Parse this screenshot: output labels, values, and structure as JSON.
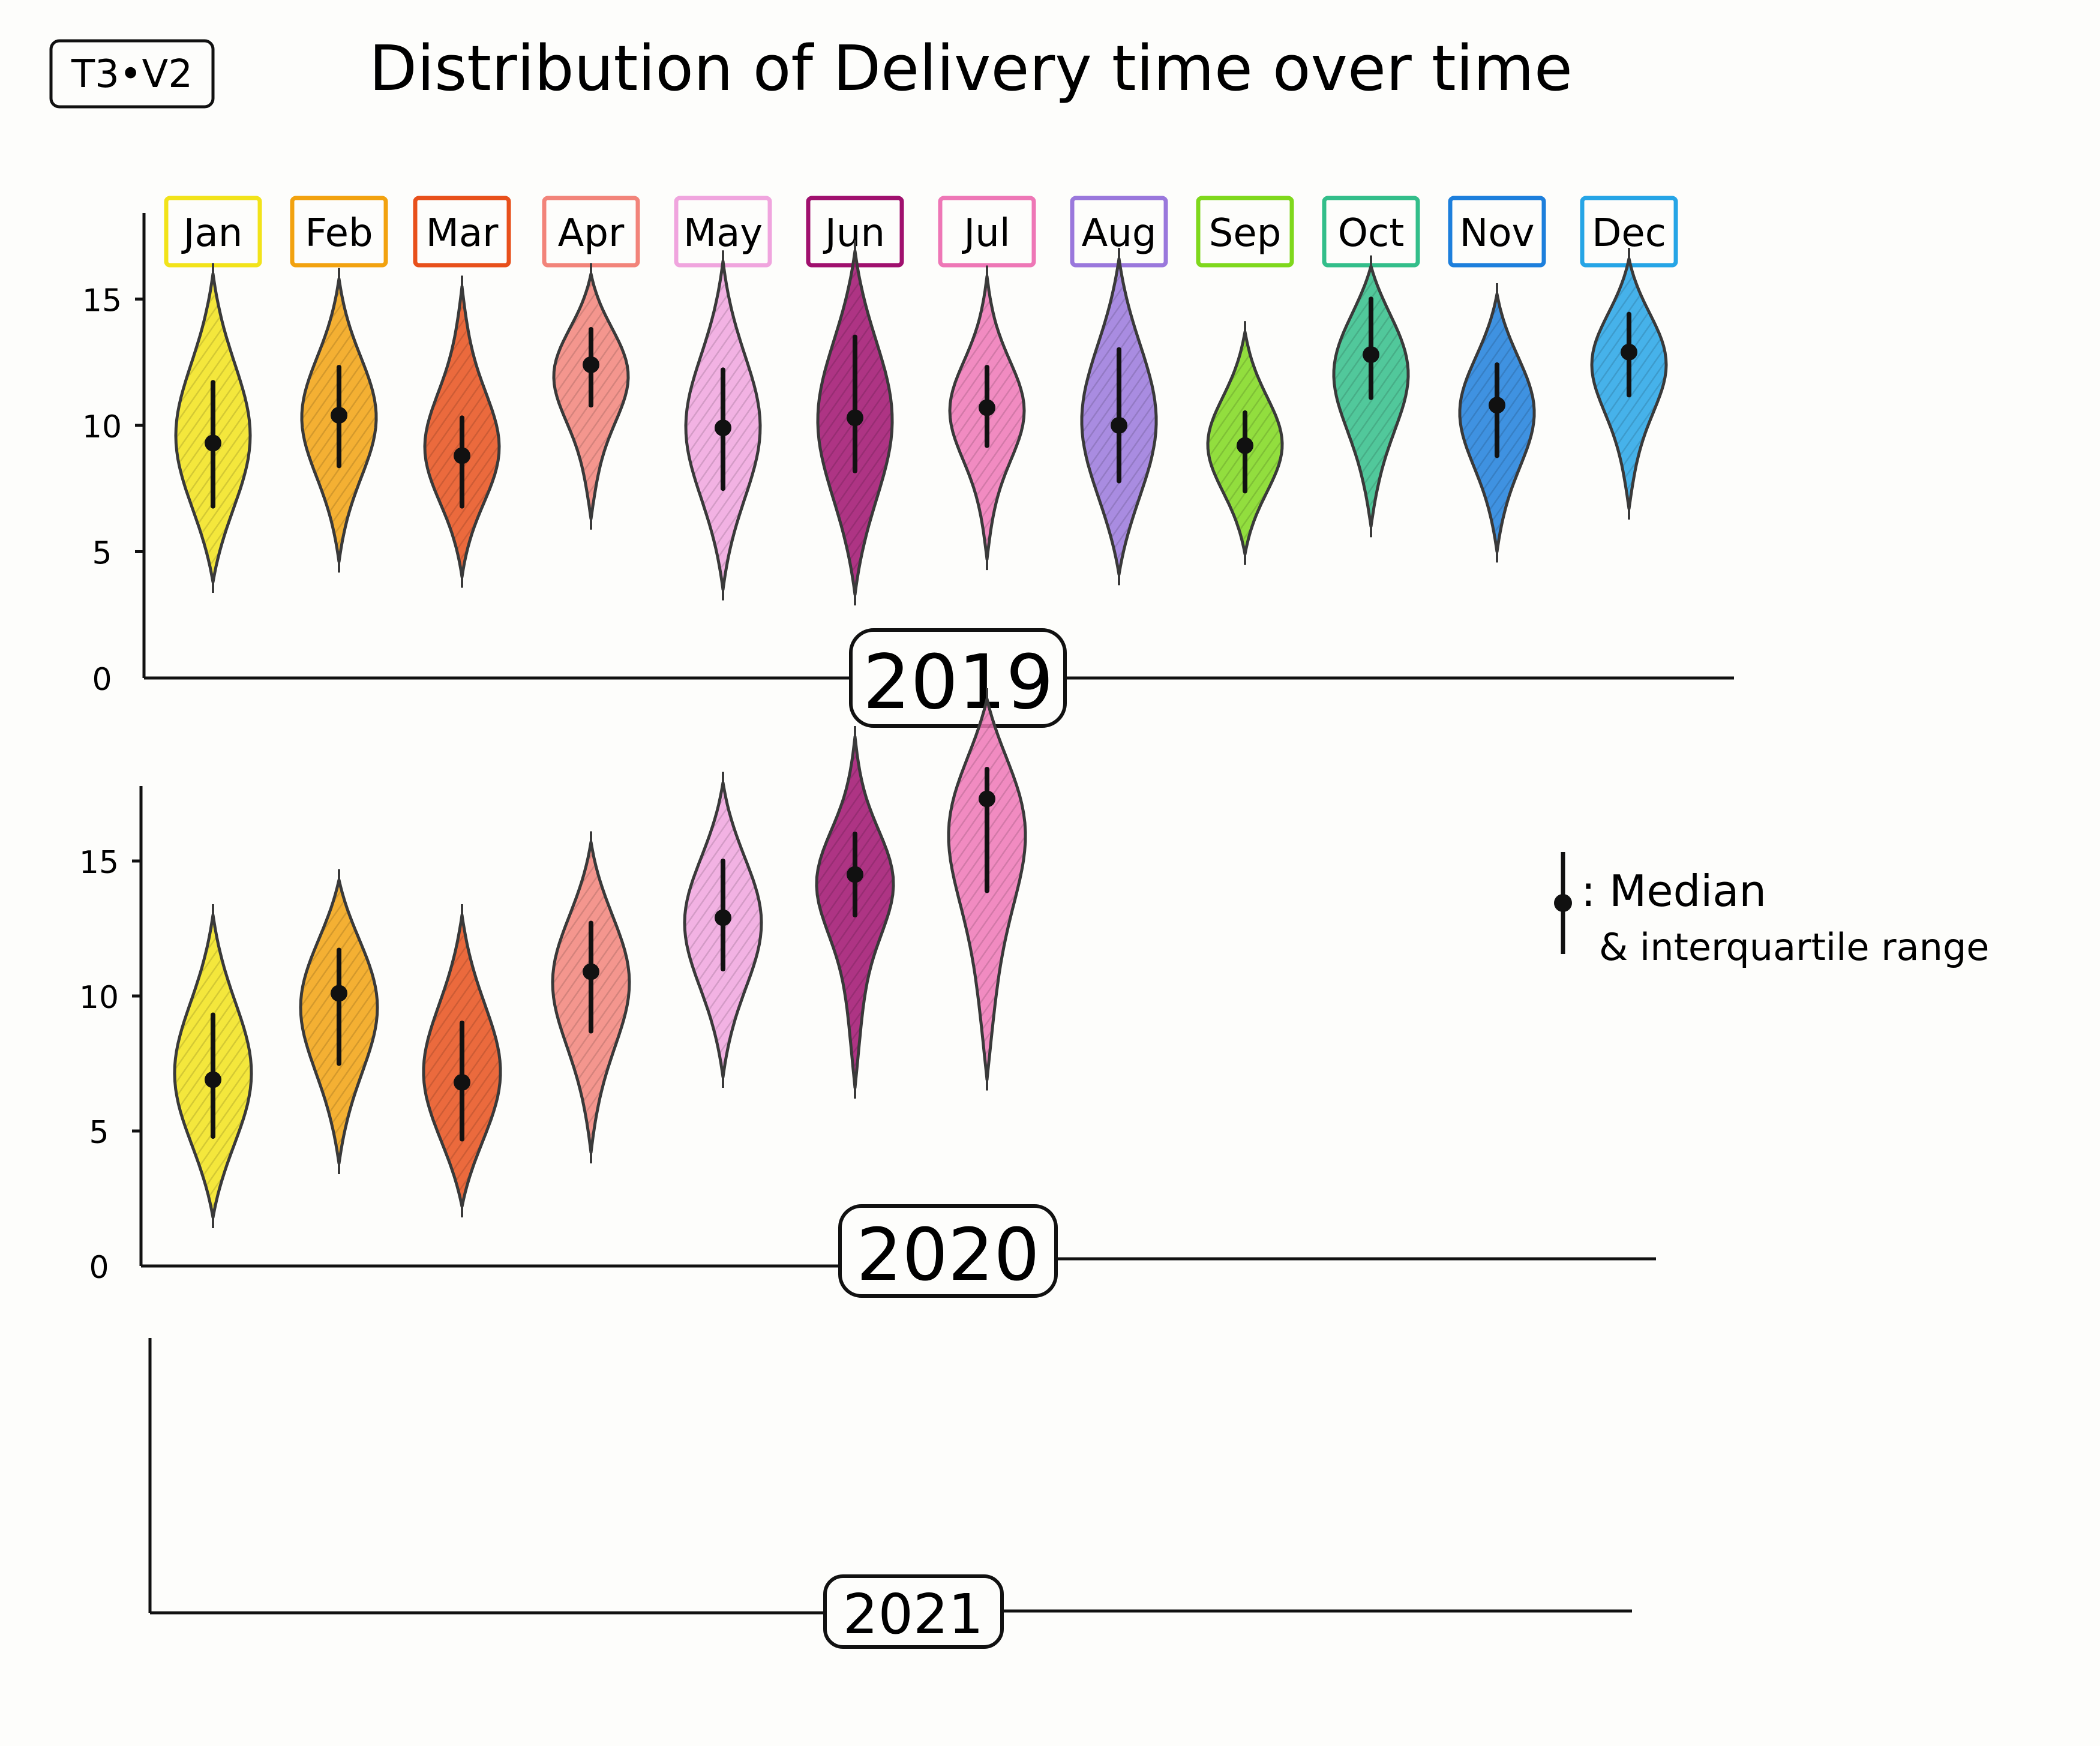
{
  "sheet_id": "T3•V2",
  "title": "Distribution of Delivery time over time",
  "legend": {
    "line1": ": Median",
    "line2": "& interquartile range"
  },
  "months": [
    {
      "label": "Jan",
      "color": "#f2e31a"
    },
    {
      "label": "Feb",
      "color": "#f2a20f"
    },
    {
      "label": "Mar",
      "color": "#e8501b"
    },
    {
      "label": "Apr",
      "color": "#f2847a"
    },
    {
      "label": "May",
      "color": "#f0a5de"
    },
    {
      "label": "Jun",
      "color": "#a0106e"
    },
    {
      "label": "Jul",
      "color": "#ee77b6"
    },
    {
      "label": "Aug",
      "color": "#9a78dc"
    },
    {
      "label": "Sep",
      "color": "#7fd81c"
    },
    {
      "label": "Oct",
      "color": "#33be8a"
    },
    {
      "label": "Nov",
      "color": "#1d7fdc"
    },
    {
      "label": "Dec",
      "color": "#26a5e6"
    }
  ],
  "chart_data": [
    {
      "type": "violin",
      "panel_label": "2019",
      "y_ticks": [
        "0",
        "5",
        "10",
        "15"
      ],
      "ylim": [
        0,
        19
      ],
      "series": [
        {
          "month": "Jan",
          "min": 3.8,
          "q1": 6.8,
          "median": 9.3,
          "q3": 11.7,
          "max": 16.0
        },
        {
          "month": "Feb",
          "min": 4.6,
          "q1": 8.4,
          "median": 10.4,
          "q3": 12.3,
          "max": 15.8
        },
        {
          "month": "Mar",
          "min": 4.0,
          "q1": 6.8,
          "median": 8.8,
          "q3": 10.3,
          "max": 15.5
        },
        {
          "month": "Apr",
          "min": 6.3,
          "q1": 10.8,
          "median": 12.4,
          "q3": 13.8,
          "max": 16.0
        },
        {
          "month": "May",
          "min": 3.5,
          "q1": 7.5,
          "median": 9.9,
          "q3": 12.2,
          "max": 16.5
        },
        {
          "month": "Jun",
          "min": 3.3,
          "q1": 8.2,
          "median": 10.3,
          "q3": 13.5,
          "max": 16.9
        },
        {
          "month": "Jul",
          "min": 4.7,
          "q1": 9.2,
          "median": 10.7,
          "q3": 12.3,
          "max": 15.9
        },
        {
          "month": "Aug",
          "min": 4.1,
          "q1": 7.8,
          "median": 10.0,
          "q3": 13.0,
          "max": 16.6
        },
        {
          "month": "Sep",
          "min": 4.9,
          "q1": 7.4,
          "median": 9.2,
          "q3": 10.5,
          "max": 13.7
        },
        {
          "month": "Oct",
          "min": 6.0,
          "q1": 11.1,
          "median": 12.8,
          "q3": 15.0,
          "max": 16.3
        },
        {
          "month": "Nov",
          "min": 5.0,
          "q1": 8.8,
          "median": 10.8,
          "q3": 12.4,
          "max": 15.2
        },
        {
          "month": "Dec",
          "min": 6.7,
          "q1": 11.2,
          "median": 12.9,
          "q3": 14.4,
          "max": 16.6
        }
      ]
    },
    {
      "type": "violin",
      "panel_label": "2020",
      "y_ticks": [
        "0",
        "5",
        "10",
        "15"
      ],
      "ylim": [
        0,
        20
      ],
      "series": [
        {
          "month": "Jan",
          "min": 1.8,
          "q1": 4.8,
          "median": 6.9,
          "q3": 9.3,
          "max": 13.0
        },
        {
          "month": "Feb",
          "min": 3.8,
          "q1": 7.5,
          "median": 10.1,
          "q3": 11.7,
          "max": 14.3
        },
        {
          "month": "Mar",
          "min": 2.2,
          "q1": 4.7,
          "median": 6.8,
          "q3": 9.0,
          "max": 13.0
        },
        {
          "month": "Apr",
          "min": 4.2,
          "q1": 8.7,
          "median": 10.9,
          "q3": 12.7,
          "max": 15.7
        },
        {
          "month": "May",
          "min": 7.0,
          "q1": 11.0,
          "median": 12.9,
          "q3": 15.0,
          "max": 17.9
        },
        {
          "month": "Jun",
          "min": 6.6,
          "q1": 13.0,
          "median": 14.5,
          "q3": 16.0,
          "max": 19.6
        },
        {
          "month": "Jul",
          "min": 6.9,
          "q1": 13.9,
          "median": 17.3,
          "q3": 18.4,
          "max": 21.0
        }
      ]
    },
    {
      "type": "violin",
      "panel_label": "2021",
      "series": []
    }
  ]
}
